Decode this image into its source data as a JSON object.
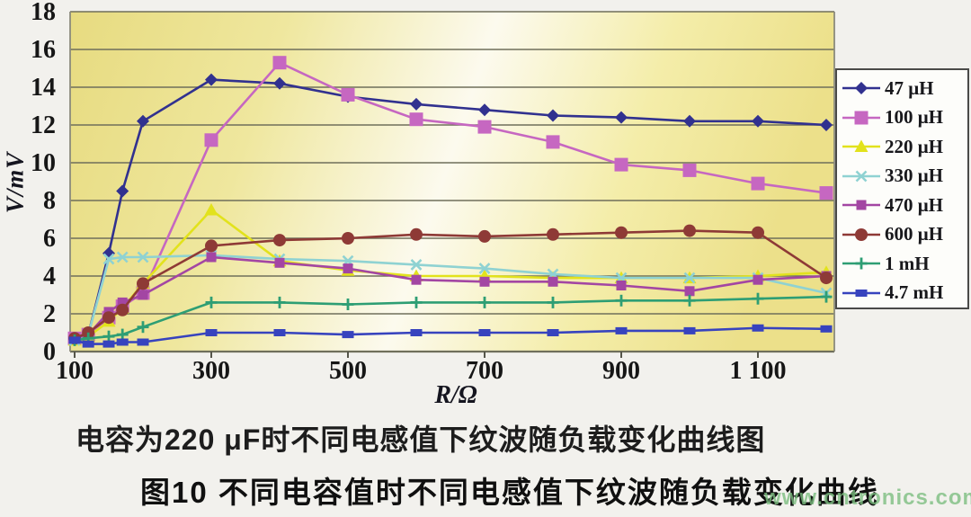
{
  "figure": {
    "caption_line1": "电容为220 μF时不同电感值下纹波随负载变化曲线图",
    "caption_line2": "图10  不同电容值时不同电感值下纹波随负载变化曲线",
    "watermark": "www.cntronics.com"
  },
  "chart_data": {
    "type": "line",
    "title": "",
    "xlabel": "R/Ω",
    "ylabel": "V/mV",
    "xlim": [
      100,
      1210
    ],
    "ylim": [
      0,
      18
    ],
    "grid": "horizontal, every 2 mV",
    "legend_position": "right-outside",
    "x_ticks": [
      100,
      300,
      500,
      700,
      900,
      1100
    ],
    "x_tick_labels": [
      "100",
      "300",
      "500",
      "700",
      "900",
      "1 100"
    ],
    "y_ticks": [
      0,
      2,
      4,
      6,
      8,
      10,
      12,
      14,
      16,
      18
    ],
    "x": [
      100,
      120,
      150,
      170,
      200,
      300,
      400,
      500,
      600,
      700,
      800,
      900,
      1000,
      1100,
      1200
    ],
    "series": [
      {
        "name": "47 μH",
        "color": "#31318F",
        "marker": "diamond",
        "values": [
          0.7,
          0.9,
          5.2,
          8.5,
          12.2,
          14.4,
          14.2,
          13.5,
          13.1,
          12.8,
          12.5,
          12.4,
          12.2,
          12.2,
          12.0
        ]
      },
      {
        "name": "100 μH",
        "color": "#C667C1",
        "marker": "square",
        "values": [
          0.7,
          0.9,
          1.8,
          2.4,
          3.1,
          11.2,
          15.3,
          13.6,
          12.3,
          11.9,
          11.1,
          9.9,
          9.6,
          8.9,
          8.4
        ]
      },
      {
        "name": "220 μH",
        "color": "#E2E21C",
        "marker": "triangle",
        "values": [
          0.6,
          0.8,
          1.6,
          2.3,
          3.6,
          7.5,
          4.8,
          4.3,
          4.0,
          4.0,
          3.9,
          3.9,
          3.9,
          4.0,
          4.2
        ]
      },
      {
        "name": "330 μH",
        "color": "#8FD2D2",
        "marker": "x",
        "values": [
          0.6,
          0.9,
          4.9,
          5.0,
          5.0,
          5.1,
          4.9,
          4.8,
          4.6,
          4.4,
          4.1,
          3.9,
          3.9,
          3.9,
          3.1
        ]
      },
      {
        "name": "470 μH",
        "color": "#A346A3",
        "marker": "square-small",
        "values": [
          0.7,
          0.9,
          2.1,
          2.6,
          3.0,
          5.0,
          4.7,
          4.4,
          3.8,
          3.7,
          3.7,
          3.5,
          3.2,
          3.8,
          4.0
        ]
      },
      {
        "name": "600 μH",
        "color": "#8E3A36",
        "marker": "circle",
        "values": [
          0.7,
          1.0,
          1.8,
          2.2,
          3.6,
          5.6,
          5.9,
          6.0,
          6.2,
          6.1,
          6.2,
          6.3,
          6.4,
          6.3,
          3.9
        ]
      },
      {
        "name": "1 mH",
        "color": "#2E9E74",
        "marker": "plus",
        "values": [
          0.6,
          0.7,
          0.8,
          0.9,
          1.3,
          2.6,
          2.6,
          2.5,
          2.6,
          2.6,
          2.6,
          2.7,
          2.7,
          2.8,
          2.9
        ]
      },
      {
        "name": "4.7 mH",
        "color": "#3743BE",
        "marker": "dash",
        "values": [
          0.6,
          0.4,
          0.4,
          0.5,
          0.5,
          1.0,
          1.0,
          0.9,
          1.0,
          1.0,
          1.0,
          1.1,
          1.1,
          1.25,
          1.2
        ]
      }
    ],
    "plot_bg_colors": [
      "#E7DB80",
      "#FCFAEE",
      "#ECE08A"
    ],
    "gridline_color": "#6F6F5B"
  }
}
